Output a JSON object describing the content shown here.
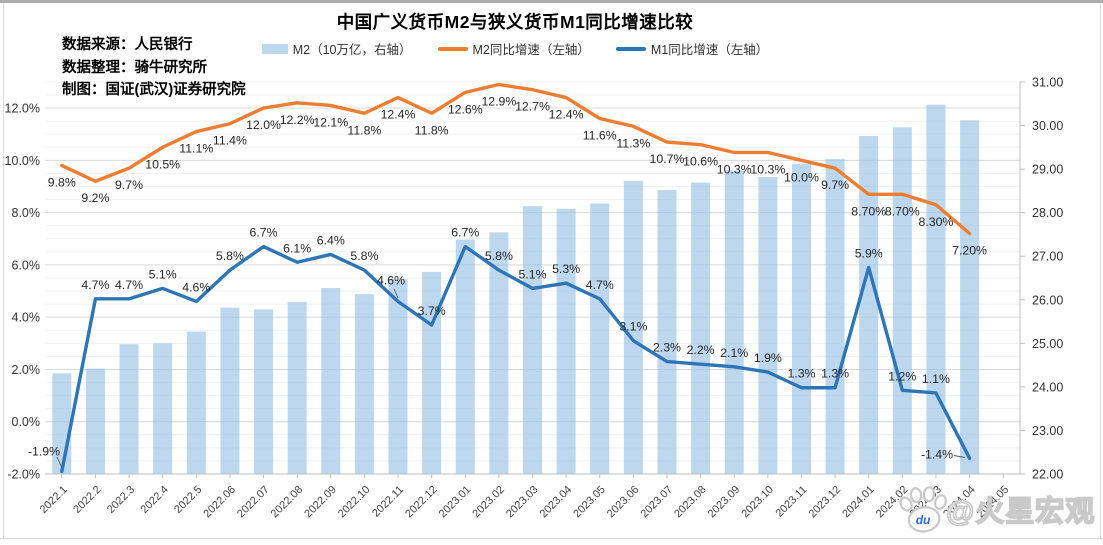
{
  "title": "中国广义货币M2与狭义货币M1同比增速比较",
  "source_notes": {
    "line1": "数据来源：人民银行",
    "line2": "数据整理：骑牛研究所",
    "line3": "制图：国证(武汉)证券研究院"
  },
  "legend": {
    "items": [
      {
        "label": "M2（10万亿，右轴）",
        "color": "#BDD7EE",
        "swatch": "bar"
      },
      {
        "label": "M2同比增速（左轴）",
        "color": "#ED7D31",
        "swatch": "line"
      },
      {
        "label": "M1同比增速（左轴）",
        "color": "#2E75B6",
        "swatch": "line"
      }
    ]
  },
  "watermark": {
    "text": "@火星宏观",
    "paw_label": "du"
  },
  "chart_data": {
    "type": "combo-bar-line",
    "title": "中国广义货币M2与狭义货币M1同比增速比较",
    "categories": [
      "2022.1",
      "2022.2",
      "2022.3",
      "2022.4",
      "2022.5",
      "2022.06",
      "2022.07",
      "2022.08",
      "2022.09",
      "2022.10",
      "2022.11",
      "2022.12",
      "2023.01",
      "2023.02",
      "2023.03",
      "2023.04",
      "2023.05",
      "2023.06",
      "2023.07",
      "2023.08",
      "2023.09",
      "2023.10",
      "2023.11",
      "2023.12",
      "2024.01",
      "2024.02",
      "2024.03",
      "2024.04",
      "2024.05"
    ],
    "series": [
      {
        "name": "M2（10万亿，右轴）",
        "type": "bar",
        "axis": "right",
        "color": "#BDD7EE",
        "values": [
          24.31,
          24.42,
          24.98,
          25.0,
          25.27,
          25.82,
          25.78,
          25.95,
          26.27,
          26.13,
          26.47,
          26.64,
          27.38,
          27.55,
          28.15,
          28.09,
          28.21,
          28.73,
          28.52,
          28.69,
          28.97,
          28.82,
          29.12,
          29.23,
          29.76,
          29.96,
          30.48,
          30.12,
          null
        ]
      },
      {
        "name": "M2同比增速（左轴）",
        "type": "line",
        "axis": "left",
        "color": "#ED7D31",
        "values": [
          9.8,
          9.2,
          9.7,
          10.5,
          11.1,
          11.4,
          12.0,
          12.2,
          12.1,
          11.8,
          12.4,
          11.8,
          12.6,
          12.9,
          12.7,
          12.4,
          11.6,
          11.3,
          10.7,
          10.6,
          10.3,
          10.3,
          10.0,
          9.7,
          8.7,
          8.7,
          8.3,
          7.2,
          null
        ],
        "labels": [
          "9.8%",
          "9.2%",
          "9.7%",
          "10.5%",
          "11.1%",
          "11.4%",
          "12.0%",
          "12.2%",
          "12.1%",
          "11.8%",
          "12.4%",
          "11.8%",
          "12.6%",
          "12.9%",
          "12.7%",
          "12.4%",
          "11.6%",
          "11.3%",
          "10.7%",
          "10.6%",
          "10.3%",
          "10.3%",
          "10.0%",
          "9.7%",
          "8.70%",
          "8.70%",
          "8.30%",
          "7.20%",
          ""
        ]
      },
      {
        "name": "M1同比增速（左轴）",
        "type": "line",
        "axis": "left",
        "color": "#2E75B6",
        "values": [
          -1.9,
          4.7,
          4.7,
          5.1,
          4.6,
          5.8,
          6.7,
          6.1,
          6.4,
          5.8,
          4.6,
          3.7,
          6.7,
          5.8,
          5.1,
          5.3,
          4.7,
          3.1,
          2.3,
          2.2,
          2.1,
          1.9,
          1.3,
          1.3,
          5.9,
          1.2,
          1.1,
          -1.4,
          null
        ],
        "labels": [
          "-1.9%",
          "4.7%",
          "4.7%",
          "5.1%",
          "4.6%",
          "5.8%",
          "6.7%",
          "6.1%",
          "6.4%",
          "5.8%",
          "4.6%",
          "3.7%",
          "6.7%",
          "5.8%",
          "5.1%",
          "5.3%",
          "4.7%",
          "3.1%",
          "2.3%",
          "2.2%",
          "2.1%",
          "1.9%",
          "1.3%",
          "1.3%",
          "5.9%",
          "1.2%",
          "1.1%",
          "-1.4%",
          ""
        ]
      }
    ],
    "left_axis": {
      "unit": "%",
      "min": -2,
      "max": 13,
      "tick_step": 2,
      "tick_labels": [
        "12.0%",
        "10.0%",
        "8.0%",
        "6.0%",
        "4.0%",
        "2.0%",
        "0.0%",
        "-2.0%"
      ]
    },
    "right_axis": {
      "min": 22,
      "max": 31,
      "tick_step": 1,
      "tick_labels": [
        "31.00",
        "30.00",
        "29.00",
        "28.00",
        "27.00",
        "26.00",
        "25.00",
        "24.00",
        "23.00",
        "22.00"
      ]
    },
    "grid": true,
    "legend_position": "top"
  }
}
